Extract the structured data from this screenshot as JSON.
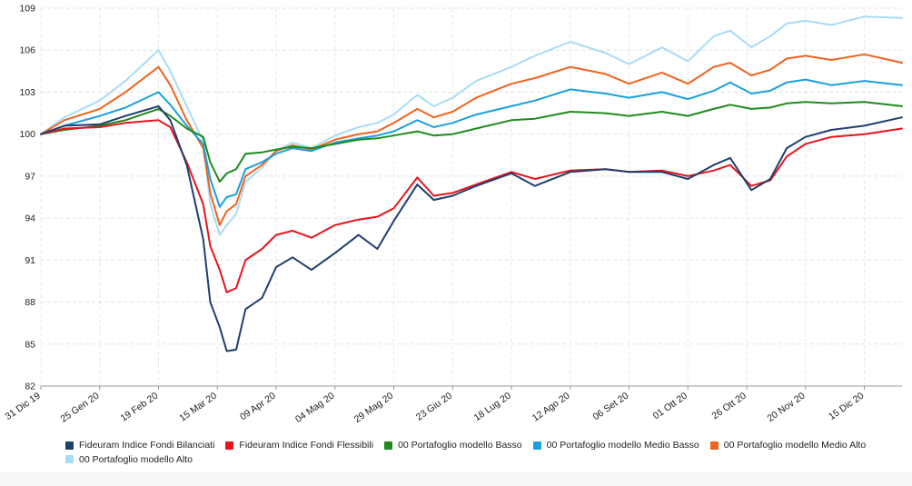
{
  "chart_data": {
    "type": "line",
    "title": "",
    "xlabel": "",
    "ylabel": "",
    "ylim": [
      82,
      109
    ],
    "yticks": [
      82,
      85,
      88,
      91,
      94,
      97,
      100,
      103,
      106,
      109
    ],
    "grid": true,
    "legend_position": "bottom",
    "x_start": "2019-12-31",
    "x_end": "2020-12-31",
    "xtick_labels": [
      {
        "date": "2019-12-31",
        "label": "31 Dic 19"
      },
      {
        "date": "2020-01-25",
        "label": "25 Gen 20"
      },
      {
        "date": "2020-02-19",
        "label": "19 Feb 20"
      },
      {
        "date": "2020-03-15",
        "label": "15 Mar 20"
      },
      {
        "date": "2020-04-09",
        "label": "09 Apr 20"
      },
      {
        "date": "2020-05-04",
        "label": "04 Mag 20"
      },
      {
        "date": "2020-05-29",
        "label": "29 Mag 20"
      },
      {
        "date": "2020-06-23",
        "label": "23 Giu 20"
      },
      {
        "date": "2020-07-18",
        "label": "18 Lug 20"
      },
      {
        "date": "2020-08-12",
        "label": "12 Ago 20"
      },
      {
        "date": "2020-09-06",
        "label": "06 Set 20"
      },
      {
        "date": "2020-10-01",
        "label": "01 Ott 20"
      },
      {
        "date": "2020-10-26",
        "label": "26 Ott 20"
      },
      {
        "date": "2020-11-20",
        "label": "20 Nov 20"
      },
      {
        "date": "2020-12-15",
        "label": "15 Dic 20"
      }
    ],
    "series": [
      {
        "name": "Fideuram Indice Fondi Bilanciati",
        "color": "#1f3f6e",
        "points": [
          [
            "2019-12-31",
            100.0
          ],
          [
            "2020-01-10",
            100.6
          ],
          [
            "2020-01-25",
            100.7
          ],
          [
            "2020-02-05",
            101.3
          ],
          [
            "2020-02-19",
            102.0
          ],
          [
            "2020-02-24",
            101.0
          ],
          [
            "2020-03-02",
            97.8
          ],
          [
            "2020-03-09",
            92.5
          ],
          [
            "2020-03-12",
            88.0
          ],
          [
            "2020-03-16",
            86.2
          ],
          [
            "2020-03-19",
            84.5
          ],
          [
            "2020-03-23",
            84.6
          ],
          [
            "2020-03-27",
            87.5
          ],
          [
            "2020-04-03",
            88.3
          ],
          [
            "2020-04-09",
            90.5
          ],
          [
            "2020-04-16",
            91.2
          ],
          [
            "2020-04-24",
            90.3
          ],
          [
            "2020-05-04",
            91.5
          ],
          [
            "2020-05-14",
            92.8
          ],
          [
            "2020-05-22",
            91.8
          ],
          [
            "2020-05-29",
            93.8
          ],
          [
            "2020-06-08",
            96.4
          ],
          [
            "2020-06-15",
            95.3
          ],
          [
            "2020-06-23",
            95.6
          ],
          [
            "2020-07-03",
            96.3
          ],
          [
            "2020-07-18",
            97.2
          ],
          [
            "2020-07-28",
            96.3
          ],
          [
            "2020-08-12",
            97.3
          ],
          [
            "2020-08-27",
            97.5
          ],
          [
            "2020-09-06",
            97.3
          ],
          [
            "2020-09-20",
            97.3
          ],
          [
            "2020-10-01",
            96.8
          ],
          [
            "2020-10-12",
            97.8
          ],
          [
            "2020-10-19",
            98.3
          ],
          [
            "2020-10-28",
            96.0
          ],
          [
            "2020-11-05",
            96.8
          ],
          [
            "2020-11-12",
            99.0
          ],
          [
            "2020-11-20",
            99.8
          ],
          [
            "2020-12-01",
            100.3
          ],
          [
            "2020-12-15",
            100.6
          ],
          [
            "2020-12-31",
            101.2
          ]
        ]
      },
      {
        "name": "Fideuram Indice Fondi Flessibili",
        "color": "#e8141c",
        "points": [
          [
            "2019-12-31",
            100.0
          ],
          [
            "2020-01-10",
            100.4
          ],
          [
            "2020-01-25",
            100.5
          ],
          [
            "2020-02-05",
            100.8
          ],
          [
            "2020-02-19",
            101.0
          ],
          [
            "2020-02-24",
            100.5
          ],
          [
            "2020-03-02",
            98.0
          ],
          [
            "2020-03-09",
            95.0
          ],
          [
            "2020-03-12",
            92.0
          ],
          [
            "2020-03-16",
            90.3
          ],
          [
            "2020-03-19",
            88.7
          ],
          [
            "2020-03-23",
            89.0
          ],
          [
            "2020-03-27",
            91.0
          ],
          [
            "2020-04-03",
            91.8
          ],
          [
            "2020-04-09",
            92.8
          ],
          [
            "2020-04-16",
            93.1
          ],
          [
            "2020-04-24",
            92.6
          ],
          [
            "2020-05-04",
            93.5
          ],
          [
            "2020-05-14",
            93.9
          ],
          [
            "2020-05-22",
            94.1
          ],
          [
            "2020-05-29",
            94.7
          ],
          [
            "2020-06-08",
            96.9
          ],
          [
            "2020-06-15",
            95.6
          ],
          [
            "2020-06-23",
            95.8
          ],
          [
            "2020-07-03",
            96.4
          ],
          [
            "2020-07-18",
            97.3
          ],
          [
            "2020-07-28",
            96.8
          ],
          [
            "2020-08-12",
            97.4
          ],
          [
            "2020-08-27",
            97.5
          ],
          [
            "2020-09-06",
            97.3
          ],
          [
            "2020-09-20",
            97.4
          ],
          [
            "2020-10-01",
            97.0
          ],
          [
            "2020-10-12",
            97.4
          ],
          [
            "2020-10-19",
            97.8
          ],
          [
            "2020-10-28",
            96.3
          ],
          [
            "2020-11-05",
            96.7
          ],
          [
            "2020-11-12",
            98.4
          ],
          [
            "2020-11-20",
            99.3
          ],
          [
            "2020-12-01",
            99.8
          ],
          [
            "2020-12-15",
            100.0
          ],
          [
            "2020-12-31",
            100.4
          ]
        ]
      },
      {
        "name": "00 Portafoglio modello Basso",
        "color": "#1e8a1e",
        "points": [
          [
            "2019-12-31",
            100.0
          ],
          [
            "2020-01-10",
            100.3
          ],
          [
            "2020-01-25",
            100.6
          ],
          [
            "2020-02-05",
            101.0
          ],
          [
            "2020-02-19",
            101.8
          ],
          [
            "2020-02-24",
            101.3
          ],
          [
            "2020-03-02",
            100.4
          ],
          [
            "2020-03-09",
            99.8
          ],
          [
            "2020-03-12",
            98.0
          ],
          [
            "2020-03-16",
            96.6
          ],
          [
            "2020-03-19",
            97.2
          ],
          [
            "2020-03-23",
            97.5
          ],
          [
            "2020-03-27",
            98.6
          ],
          [
            "2020-04-03",
            98.7
          ],
          [
            "2020-04-09",
            98.9
          ],
          [
            "2020-04-16",
            99.1
          ],
          [
            "2020-04-24",
            99.0
          ],
          [
            "2020-05-04",
            99.3
          ],
          [
            "2020-05-14",
            99.6
          ],
          [
            "2020-05-22",
            99.7
          ],
          [
            "2020-05-29",
            99.9
          ],
          [
            "2020-06-08",
            100.2
          ],
          [
            "2020-06-15",
            99.9
          ],
          [
            "2020-06-23",
            100.0
          ],
          [
            "2020-07-03",
            100.4
          ],
          [
            "2020-07-18",
            101.0
          ],
          [
            "2020-07-28",
            101.1
          ],
          [
            "2020-08-12",
            101.6
          ],
          [
            "2020-08-27",
            101.5
          ],
          [
            "2020-09-06",
            101.3
          ],
          [
            "2020-09-20",
            101.6
          ],
          [
            "2020-10-01",
            101.3
          ],
          [
            "2020-10-12",
            101.8
          ],
          [
            "2020-10-19",
            102.1
          ],
          [
            "2020-10-28",
            101.8
          ],
          [
            "2020-11-05",
            101.9
          ],
          [
            "2020-11-12",
            102.2
          ],
          [
            "2020-11-20",
            102.3
          ],
          [
            "2020-12-01",
            102.2
          ],
          [
            "2020-12-15",
            102.3
          ],
          [
            "2020-12-31",
            102.0
          ]
        ]
      },
      {
        "name": "00 Portafoglio modello Medio Basso",
        "color": "#1aa0dc",
        "points": [
          [
            "2019-12-31",
            100.0
          ],
          [
            "2020-01-10",
            100.6
          ],
          [
            "2020-01-25",
            101.3
          ],
          [
            "2020-02-05",
            101.9
          ],
          [
            "2020-02-19",
            103.0
          ],
          [
            "2020-02-24",
            102.1
          ],
          [
            "2020-03-02",
            100.6
          ],
          [
            "2020-03-09",
            99.3
          ],
          [
            "2020-03-12",
            96.8
          ],
          [
            "2020-03-16",
            94.8
          ],
          [
            "2020-03-19",
            95.5
          ],
          [
            "2020-03-23",
            95.7
          ],
          [
            "2020-03-27",
            97.5
          ],
          [
            "2020-04-03",
            98.0
          ],
          [
            "2020-04-09",
            98.6
          ],
          [
            "2020-04-16",
            99.0
          ],
          [
            "2020-04-24",
            98.8
          ],
          [
            "2020-05-04",
            99.4
          ],
          [
            "2020-05-14",
            99.7
          ],
          [
            "2020-05-22",
            99.9
          ],
          [
            "2020-05-29",
            100.2
          ],
          [
            "2020-06-08",
            101.0
          ],
          [
            "2020-06-15",
            100.5
          ],
          [
            "2020-06-23",
            100.8
          ],
          [
            "2020-07-03",
            101.4
          ],
          [
            "2020-07-18",
            102.0
          ],
          [
            "2020-07-28",
            102.4
          ],
          [
            "2020-08-12",
            103.2
          ],
          [
            "2020-08-27",
            102.9
          ],
          [
            "2020-09-06",
            102.6
          ],
          [
            "2020-09-20",
            103.0
          ],
          [
            "2020-10-01",
            102.5
          ],
          [
            "2020-10-12",
            103.1
          ],
          [
            "2020-10-19",
            103.7
          ],
          [
            "2020-10-28",
            102.9
          ],
          [
            "2020-11-05",
            103.1
          ],
          [
            "2020-11-12",
            103.7
          ],
          [
            "2020-11-20",
            103.9
          ],
          [
            "2020-12-01",
            103.5
          ],
          [
            "2020-12-15",
            103.8
          ],
          [
            "2020-12-31",
            103.5
          ]
        ]
      },
      {
        "name": "00 Portafoglio modello Medio Alto",
        "color": "#f0621e",
        "points": [
          [
            "2019-12-31",
            100.0
          ],
          [
            "2020-01-10",
            101.0
          ],
          [
            "2020-01-25",
            101.8
          ],
          [
            "2020-02-05",
            103.0
          ],
          [
            "2020-02-19",
            104.8
          ],
          [
            "2020-02-24",
            103.5
          ],
          [
            "2020-03-02",
            101.0
          ],
          [
            "2020-03-09",
            99.0
          ],
          [
            "2020-03-12",
            95.8
          ],
          [
            "2020-03-16",
            93.5
          ],
          [
            "2020-03-19",
            94.5
          ],
          [
            "2020-03-23",
            95.0
          ],
          [
            "2020-03-27",
            97.0
          ],
          [
            "2020-04-03",
            97.8
          ],
          [
            "2020-04-09",
            98.8
          ],
          [
            "2020-04-16",
            99.2
          ],
          [
            "2020-04-24",
            98.9
          ],
          [
            "2020-05-04",
            99.6
          ],
          [
            "2020-05-14",
            100.0
          ],
          [
            "2020-05-22",
            100.2
          ],
          [
            "2020-05-29",
            100.8
          ],
          [
            "2020-06-08",
            101.8
          ],
          [
            "2020-06-15",
            101.2
          ],
          [
            "2020-06-23",
            101.6
          ],
          [
            "2020-07-03",
            102.6
          ],
          [
            "2020-07-18",
            103.6
          ],
          [
            "2020-07-28",
            104.0
          ],
          [
            "2020-08-12",
            104.8
          ],
          [
            "2020-08-27",
            104.3
          ],
          [
            "2020-09-06",
            103.6
          ],
          [
            "2020-09-20",
            104.4
          ],
          [
            "2020-10-01",
            103.6
          ],
          [
            "2020-10-12",
            104.8
          ],
          [
            "2020-10-19",
            105.1
          ],
          [
            "2020-10-28",
            104.2
          ],
          [
            "2020-11-05",
            104.6
          ],
          [
            "2020-11-12",
            105.4
          ],
          [
            "2020-11-20",
            105.6
          ],
          [
            "2020-12-01",
            105.3
          ],
          [
            "2020-12-15",
            105.7
          ],
          [
            "2020-12-31",
            105.1
          ]
        ]
      },
      {
        "name": "00 Portafoglio modello Alto",
        "color": "#a8dcf5",
        "points": [
          [
            "2019-12-31",
            100.0
          ],
          [
            "2020-01-10",
            101.2
          ],
          [
            "2020-01-25",
            102.4
          ],
          [
            "2020-02-05",
            103.8
          ],
          [
            "2020-02-19",
            106.0
          ],
          [
            "2020-02-24",
            104.5
          ],
          [
            "2020-03-02",
            102.0
          ],
          [
            "2020-03-09",
            99.5
          ],
          [
            "2020-03-12",
            95.0
          ],
          [
            "2020-03-16",
            92.8
          ],
          [
            "2020-03-19",
            93.5
          ],
          [
            "2020-03-23",
            94.3
          ],
          [
            "2020-03-27",
            96.6
          ],
          [
            "2020-04-03",
            97.6
          ],
          [
            "2020-04-09",
            98.8
          ],
          [
            "2020-04-16",
            99.4
          ],
          [
            "2020-04-24",
            99.0
          ],
          [
            "2020-05-04",
            99.9
          ],
          [
            "2020-05-14",
            100.5
          ],
          [
            "2020-05-22",
            100.8
          ],
          [
            "2020-05-29",
            101.4
          ],
          [
            "2020-06-08",
            102.8
          ],
          [
            "2020-06-15",
            102.0
          ],
          [
            "2020-06-23",
            102.6
          ],
          [
            "2020-07-03",
            103.8
          ],
          [
            "2020-07-18",
            104.8
          ],
          [
            "2020-07-28",
            105.6
          ],
          [
            "2020-08-12",
            106.6
          ],
          [
            "2020-08-27",
            105.8
          ],
          [
            "2020-09-06",
            105.0
          ],
          [
            "2020-09-20",
            106.2
          ],
          [
            "2020-10-01",
            105.2
          ],
          [
            "2020-10-12",
            107.0
          ],
          [
            "2020-10-19",
            107.4
          ],
          [
            "2020-10-28",
            106.2
          ],
          [
            "2020-11-05",
            107.0
          ],
          [
            "2020-11-12",
            107.9
          ],
          [
            "2020-11-20",
            108.1
          ],
          [
            "2020-12-01",
            107.8
          ],
          [
            "2020-12-15",
            108.4
          ],
          [
            "2020-12-31",
            108.3
          ]
        ]
      }
    ]
  }
}
